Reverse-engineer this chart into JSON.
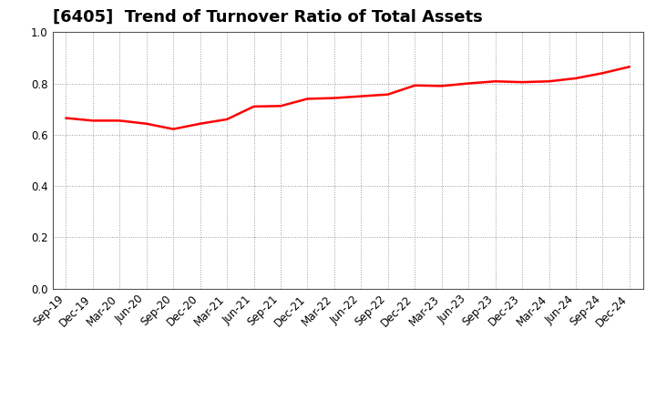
{
  "title": "[6405]  Trend of Turnover Ratio of Total Assets",
  "x_labels": [
    "Sep-19",
    "Dec-19",
    "Mar-20",
    "Jun-20",
    "Sep-20",
    "Dec-20",
    "Mar-21",
    "Jun-21",
    "Sep-21",
    "Dec-21",
    "Mar-22",
    "Jun-22",
    "Sep-22",
    "Dec-22",
    "Mar-23",
    "Jun-23",
    "Sep-23",
    "Dec-23",
    "Mar-24",
    "Jun-24",
    "Sep-24",
    "Dec-24"
  ],
  "y_values": [
    0.665,
    0.655,
    0.655,
    0.643,
    0.622,
    0.643,
    0.66,
    0.71,
    0.712,
    0.74,
    0.743,
    0.75,
    0.757,
    0.792,
    0.79,
    0.8,
    0.808,
    0.805,
    0.808,
    0.82,
    0.84,
    0.865
  ],
  "line_color": "#ff0000",
  "line_width": 1.8,
  "ylim": [
    0.0,
    1.0
  ],
  "yticks": [
    0.0,
    0.2,
    0.4,
    0.6,
    0.8,
    1.0
  ],
  "background_color": "#ffffff",
  "grid_color": "#999999",
  "title_fontsize": 13,
  "tick_fontsize": 8.5
}
